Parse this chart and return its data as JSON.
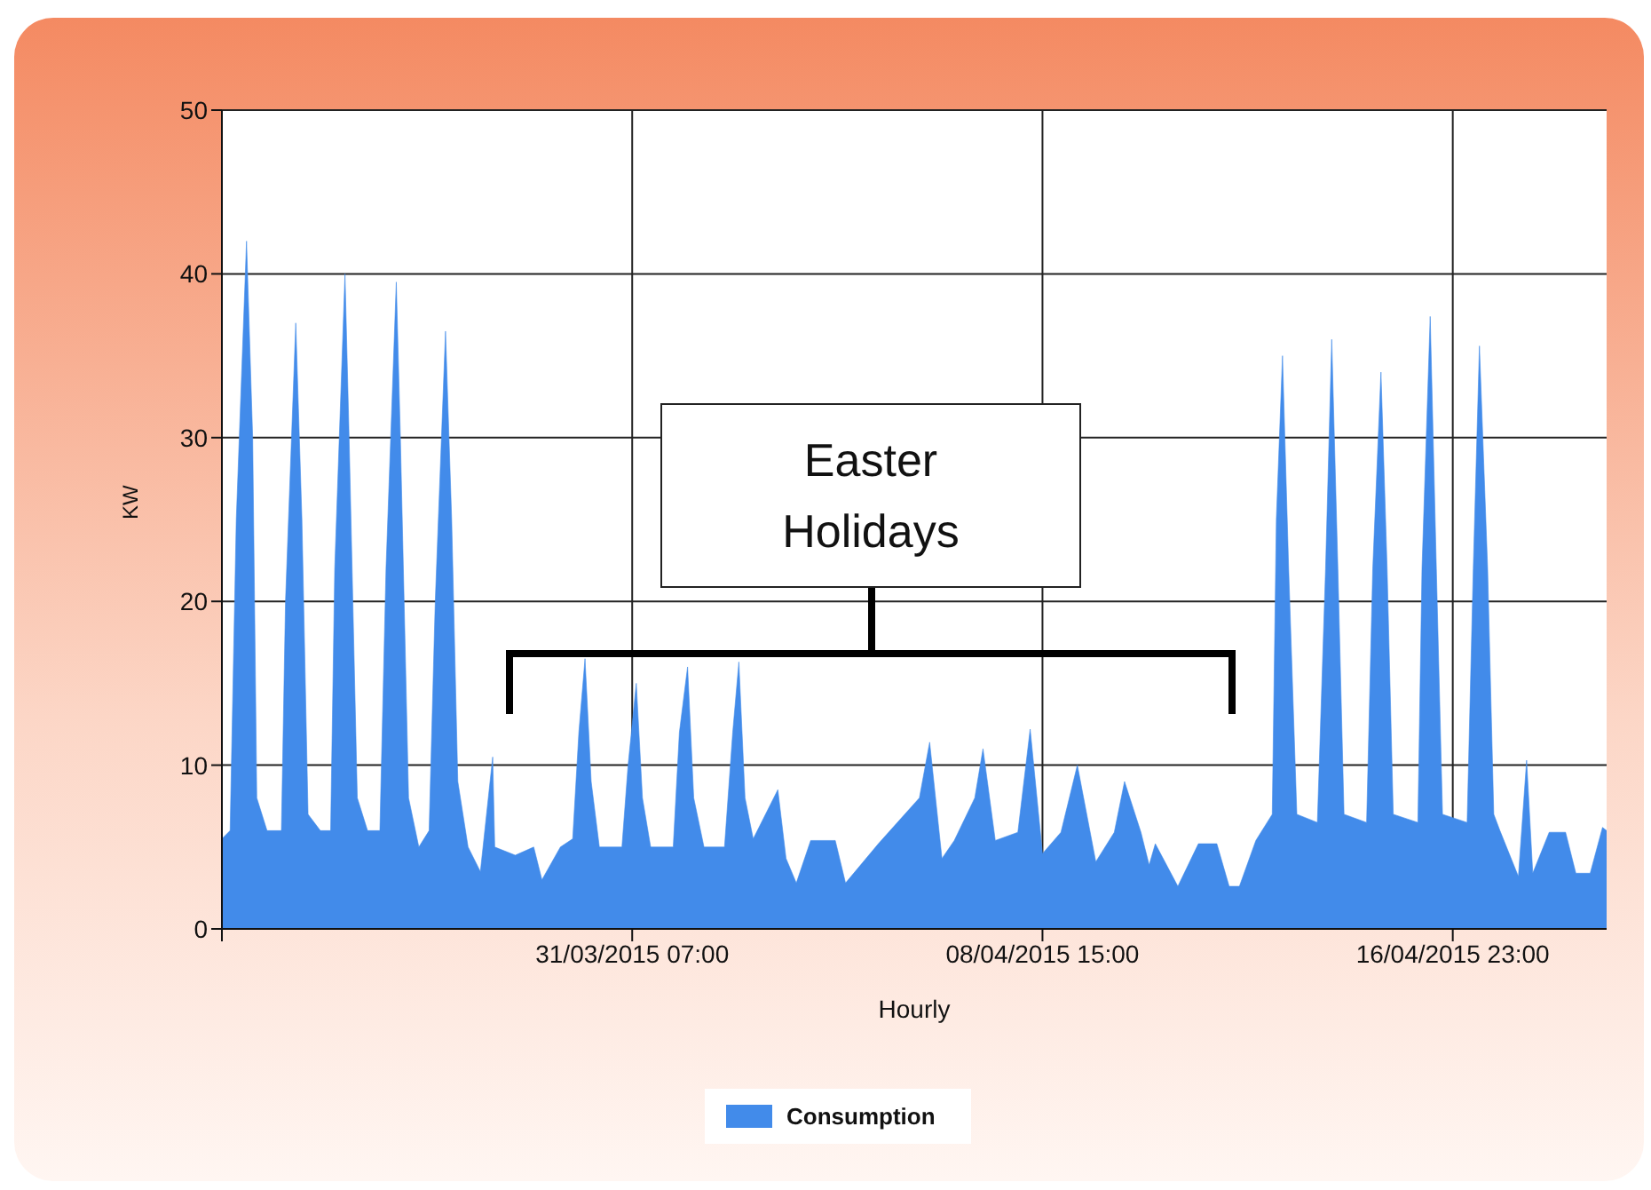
{
  "chart_data": {
    "type": "area",
    "xlabel": "Hourly",
    "ylabel": "KW",
    "annotations": [
      "Easter Holidays"
    ],
    "x": [
      "2015-03-22T23:00",
      "2015-03-23T03:00",
      "2015-03-23T06:00",
      "2015-03-23T11:00",
      "2015-03-23T14:00",
      "2015-03-23T16:00",
      "2015-03-23T21:00",
      "2015-03-24T04:00",
      "2015-03-24T06:00",
      "2015-03-24T11:00",
      "2015-03-24T14:00",
      "2015-03-24T17:00",
      "2015-03-24T23:00",
      "2015-03-25T04:00",
      "2015-03-25T06:00",
      "2015-03-25T11:00",
      "2015-03-25T13:00",
      "2015-03-25T17:00",
      "2015-03-25T22:00",
      "2015-03-26T04:00",
      "2015-03-26T07:00",
      "2015-03-26T12:00",
      "2015-03-26T14:00",
      "2015-03-26T18:00",
      "2015-03-26T23:00",
      "2015-03-27T04:00",
      "2015-03-27T07:00",
      "2015-03-27T12:00",
      "2015-03-27T15:00",
      "2015-03-27T18:00",
      "2015-03-27T23:00",
      "2015-03-28T05:00",
      "2015-03-28T11:00",
      "2015-03-28T12:00",
      "2015-03-28T22:00",
      "2015-03-29T07:00",
      "2015-03-29T11:00",
      "2015-03-29T20:00",
      "2015-03-30T02:00",
      "2015-03-30T05:00",
      "2015-03-30T08:00",
      "2015-03-30T11:00",
      "2015-03-30T15:00",
      "2015-03-31T02:00",
      "2015-03-31T05:00",
      "2015-03-31T09:00",
      "2015-03-31T12:00",
      "2015-03-31T16:00",
      "2015-04-01T03:00",
      "2015-04-01T06:00",
      "2015-04-01T10:00",
      "2015-04-01T13:00",
      "2015-04-01T18:00",
      "2015-04-02T04:00",
      "2015-04-02T08:00",
      "2015-04-02T11:00",
      "2015-04-02T14:00",
      "2015-04-02T18:00",
      "2015-04-03T06:00",
      "2015-04-03T10:00",
      "2015-04-03T15:00",
      "2015-04-03T22:00",
      "2015-04-04T10:00",
      "2015-04-04T15:00",
      "2015-04-05T07:00",
      "2015-04-06T03:00",
      "2015-04-06T08:00",
      "2015-04-06T14:00",
      "2015-04-06T20:00",
      "2015-04-07T06:00",
      "2015-04-07T10:00",
      "2015-04-07T16:00",
      "2015-04-08T03:00",
      "2015-04-08T09:00",
      "2015-04-08T15:00",
      "2015-04-09T00:00",
      "2015-04-09T08:00",
      "2015-04-09T17:00",
      "2015-04-10T02:00",
      "2015-04-10T07:00",
      "2015-04-10T15:00",
      "2015-04-10T19:00",
      "2015-04-10T22:00",
      "2015-04-11T09:00",
      "2015-04-11T19:00",
      "2015-04-12T04:00",
      "2015-04-12T10:00",
      "2015-04-12T15:00",
      "2015-04-12T23:00",
      "2015-04-13T07:00",
      "2015-04-13T09:00",
      "2015-04-13T12:00",
      "2015-04-13T15:00",
      "2015-04-13T19:00",
      "2015-04-14T05:00",
      "2015-04-14T09:00",
      "2015-04-14T12:00",
      "2015-04-14T15:00",
      "2015-04-14T18:00",
      "2015-04-15T05:00",
      "2015-04-15T08:00",
      "2015-04-15T12:00",
      "2015-04-15T15:00",
      "2015-04-15T18:00",
      "2015-04-16T06:00",
      "2015-04-16T08:00",
      "2015-04-16T12:00",
      "2015-04-16T15:00",
      "2015-04-16T18:00",
      "2015-04-17T06:00",
      "2015-04-17T09:00",
      "2015-04-17T12:00",
      "2015-04-17T16:00",
      "2015-04-17T19:00",
      "2015-04-17T22:00",
      "2015-04-18T07:00",
      "2015-04-18T11:00",
      "2015-04-18T14:00",
      "2015-04-18T22:00",
      "2015-04-19T06:00",
      "2015-04-19T11:00",
      "2015-04-19T18:00",
      "2015-04-20T00:00",
      "2015-04-20T02:00"
    ],
    "series": [
      {
        "name": "Consumption",
        "color": "#428bea",
        "values": [
          5.5,
          6,
          25,
          42,
          30,
          8,
          6,
          6,
          20,
          37,
          25,
          7,
          6,
          6,
          22,
          40,
          30,
          8,
          6,
          6,
          22,
          39.5,
          30,
          8,
          5,
          6,
          20,
          36.5,
          25,
          9,
          5,
          3.5,
          10.5,
          5,
          4.5,
          5,
          3,
          5,
          5.5,
          12,
          16.5,
          9,
          5,
          5,
          10,
          15,
          8,
          5,
          5,
          12,
          16,
          8,
          5,
          5,
          12,
          16.3,
          8,
          5.5,
          8.5,
          4.3,
          2.8,
          5.4,
          5.4,
          2.8,
          5.2,
          8,
          11.4,
          4.3,
          5.4,
          8,
          11,
          5.4,
          5.9,
          12.2,
          4.6,
          5.9,
          10,
          4.1,
          5.9,
          9,
          5.9,
          3.9,
          5.2,
          2.6,
          5.2,
          5.2,
          2.6,
          2.6,
          5.4,
          7,
          25,
          35,
          22,
          7,
          6.5,
          22,
          36,
          22,
          7,
          6.5,
          22,
          34,
          22,
          7,
          6.5,
          22,
          37.4,
          22,
          7,
          6.5,
          22,
          35.6,
          22,
          7,
          6,
          3.2,
          10.3,
          3.4,
          5.9,
          5.9,
          3.4,
          3.4,
          6.2,
          6
        ]
      }
    ],
    "xlim": [
      "2015-03-22T23:00",
      "2015-04-20T02:00"
    ],
    "xticks": [
      {
        "value": "2015-03-22T23:00",
        "label": null
      },
      {
        "value": "2015-03-31T07:00",
        "label": "31/03/2015 07:00"
      },
      {
        "value": "2015-04-08T15:00",
        "label": "08/04/2015 15:00"
      },
      {
        "value": "2015-04-16T23:00",
        "label": "16/04/2015 23:00"
      }
    ],
    "ylim": [
      0,
      50
    ],
    "yticks": [
      0,
      10,
      20,
      30,
      40,
      50
    ],
    "grid": true,
    "legend": "bottom",
    "marker": "none"
  }
}
